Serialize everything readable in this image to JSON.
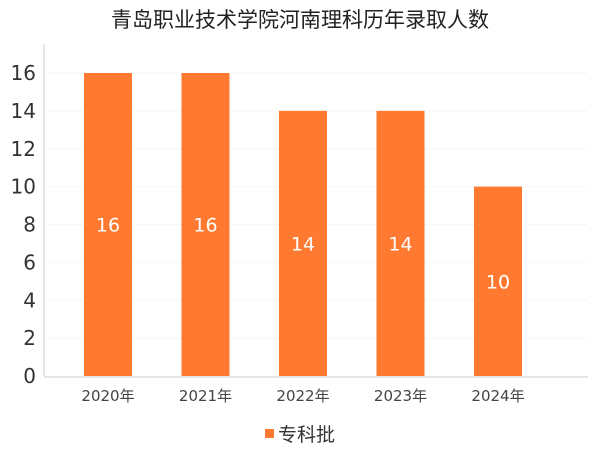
{
  "chart_data": {
    "type": "bar",
    "title": "青岛职业技术学院河南理科历年录取人数",
    "categories": [
      "2020年",
      "2021年",
      "2022年",
      "2023年",
      "2024年"
    ],
    "series": [
      {
        "name": "专科批",
        "values": [
          16,
          16,
          14,
          14,
          10
        ],
        "color": "#ff7a30"
      }
    ],
    "ylim": [
      0,
      16
    ],
    "yticks": [
      0,
      2,
      4,
      6,
      8,
      10,
      12,
      14,
      16
    ],
    "grid": true,
    "data_labels": true,
    "legend_position": "bottom-center",
    "xlabel": "",
    "ylabel": ""
  }
}
